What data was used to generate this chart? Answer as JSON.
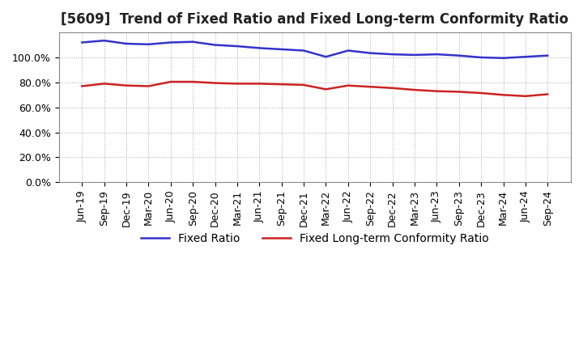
{
  "title": "[5609]  Trend of Fixed Ratio and Fixed Long-term Conformity Ratio",
  "x_labels": [
    "Jun-19",
    "Sep-19",
    "Dec-19",
    "Mar-20",
    "Jun-20",
    "Sep-20",
    "Dec-20",
    "Mar-21",
    "Jun-21",
    "Sep-21",
    "Dec-21",
    "Mar-22",
    "Jun-22",
    "Sep-22",
    "Dec-22",
    "Mar-23",
    "Jun-23",
    "Sep-23",
    "Dec-23",
    "Mar-24",
    "Jun-24",
    "Sep-24"
  ],
  "fixed_ratio": [
    112.0,
    113.5,
    111.0,
    110.5,
    112.0,
    112.5,
    110.0,
    109.0,
    107.5,
    106.5,
    105.5,
    100.5,
    105.5,
    103.5,
    102.5,
    102.0,
    102.5,
    101.5,
    100.0,
    99.5,
    100.5,
    101.5
  ],
  "fixed_lt_ratio": [
    77.0,
    79.0,
    77.5,
    77.0,
    80.5,
    80.5,
    79.5,
    79.0,
    79.0,
    78.5,
    78.0,
    74.5,
    77.5,
    76.5,
    75.5,
    74.0,
    73.0,
    72.5,
    71.5,
    70.0,
    69.0,
    70.5
  ],
  "fixed_ratio_color": "#3333cc",
  "fixed_lt_ratio_color": "#cc2222",
  "background_color": "#ffffff",
  "grid_color": "#aaaaaa",
  "ylim": [
    0.0,
    120.0
  ],
  "yticks": [
    0.0,
    20.0,
    40.0,
    60.0,
    80.0,
    100.0
  ],
  "legend_fixed_ratio": "Fixed Ratio",
  "legend_fixed_lt_ratio": "Fixed Long-term Conformity Ratio",
  "title_fontsize": 12,
  "tick_fontsize": 9,
  "legend_fontsize": 10
}
